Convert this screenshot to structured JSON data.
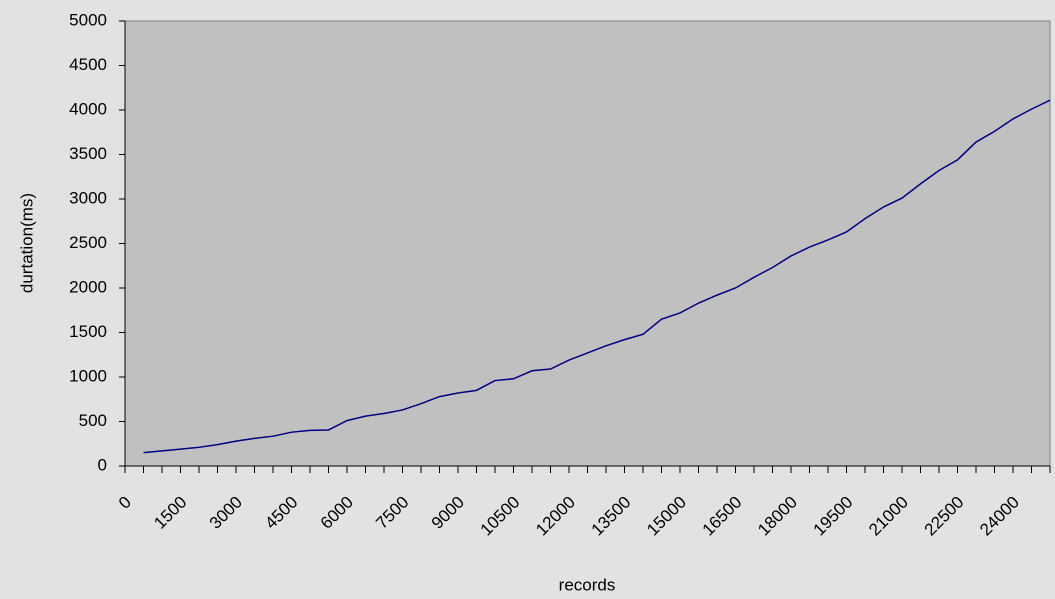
{
  "chart_data": {
    "type": "line",
    "x_label": "records",
    "y_label": "durtation(ms)",
    "x": [
      500,
      1000,
      1500,
      2000,
      2500,
      3000,
      3500,
      4000,
      4500,
      5000,
      5500,
      6000,
      6500,
      7000,
      7500,
      8000,
      8500,
      9000,
      9500,
      10000,
      10500,
      11000,
      11500,
      12000,
      12500,
      13000,
      13500,
      14000,
      14500,
      15000,
      15500,
      16000,
      16500,
      17000,
      17500,
      18000,
      18500,
      19000,
      19500,
      20000,
      20500,
      21000,
      21500,
      22000,
      22500,
      23000,
      23500,
      24000,
      24500,
      25000
    ],
    "series": [
      {
        "name": "durtation(ms)",
        "color": "#000080",
        "values": [
          150,
          170,
          190,
          210,
          240,
          280,
          310,
          335,
          380,
          400,
          405,
          510,
          560,
          590,
          630,
          700,
          780,
          820,
          850,
          960,
          980,
          1070,
          1090,
          1190,
          1270,
          1350,
          1420,
          1480,
          1650,
          1720,
          1830,
          1920,
          2000,
          2120,
          2230,
          2360,
          2460,
          2540,
          2630,
          2780,
          2910,
          3010,
          3170,
          3320,
          3440,
          3640,
          3760,
          3900,
          4010,
          4110
        ]
      }
    ],
    "xlim": [
      0,
      25000
    ],
    "xticks": [
      0,
      1500,
      3000,
      4500,
      6000,
      7500,
      9000,
      10500,
      12000,
      13500,
      15000,
      16500,
      18000,
      19500,
      21000,
      22500,
      24000
    ],
    "ylim": [
      0,
      5000
    ],
    "yticks": [
      0,
      500,
      1000,
      1500,
      2000,
      2500,
      3000,
      3500,
      4000,
      4500,
      5000
    ],
    "plot_background": "#c0c0c0"
  }
}
